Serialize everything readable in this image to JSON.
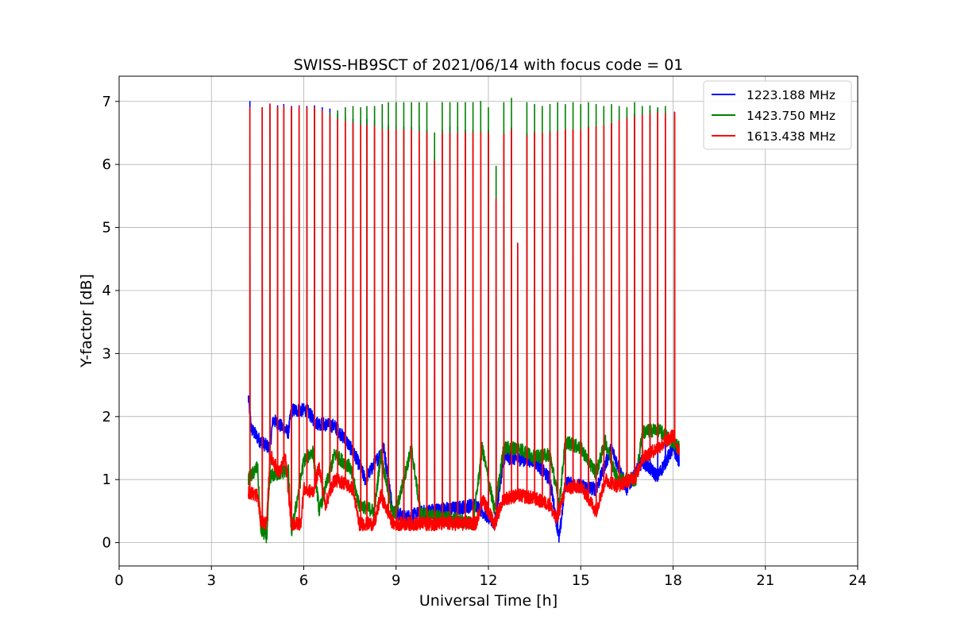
{
  "chart_data": {
    "type": "line",
    "title": "SWISS-HB9SCT of 2021/06/14 with focus code = 01",
    "xlabel": "Universal Time [h]",
    "ylabel": "Y-factor [dB]",
    "xlim": [
      0,
      24
    ],
    "ylim": [
      -0.37,
      7.4
    ],
    "xticks": [
      0,
      3,
      6,
      9,
      12,
      15,
      18,
      21,
      24
    ],
    "yticks": [
      0,
      1,
      2,
      3,
      4,
      5,
      6,
      7
    ],
    "grid": true,
    "legend_position": "top-right",
    "series": [
      {
        "name": "1223.188 MHz",
        "color": "#0000ff",
        "baseline": [
          [
            4.2,
            2.3
          ],
          [
            4.3,
            1.8
          ],
          [
            4.6,
            1.6
          ],
          [
            4.9,
            1.5
          ],
          [
            5.0,
            1.95
          ],
          [
            5.5,
            1.75
          ],
          [
            5.6,
            2.1
          ],
          [
            6.1,
            2.1
          ],
          [
            6.4,
            1.9
          ],
          [
            7.0,
            1.85
          ],
          [
            7.4,
            1.6
          ],
          [
            7.7,
            1.35
          ],
          [
            8.0,
            1.0
          ],
          [
            8.6,
            1.5
          ],
          [
            8.9,
            0.5
          ],
          [
            9.3,
            0.4
          ],
          [
            10.0,
            0.5
          ],
          [
            11.0,
            0.55
          ],
          [
            11.6,
            0.6
          ],
          [
            12.2,
            0.3
          ],
          [
            12.5,
            1.35
          ],
          [
            13.5,
            1.3
          ],
          [
            14.0,
            1.0
          ],
          [
            14.3,
            0.05
          ],
          [
            14.5,
            0.95
          ],
          [
            15.0,
            0.9
          ],
          [
            15.5,
            0.85
          ],
          [
            16.0,
            1.5
          ],
          [
            16.5,
            0.85
          ],
          [
            17.0,
            1.3
          ],
          [
            17.5,
            1.05
          ],
          [
            18.0,
            1.5
          ],
          [
            18.2,
            1.3
          ]
        ],
        "peaks": [
          [
            4.25,
            7.0
          ],
          [
            4.65,
            6.9
          ],
          [
            4.9,
            6.95
          ],
          [
            5.15,
            6.93
          ],
          [
            5.35,
            6.95
          ],
          [
            5.6,
            6.92
          ],
          [
            5.85,
            6.93
          ],
          [
            6.1,
            6.92
          ],
          [
            6.35,
            6.93
          ],
          [
            6.6,
            6.9
          ],
          [
            6.85,
            6.88
          ],
          [
            7.1,
            6.8
          ],
          [
            7.35,
            6.75
          ],
          [
            7.6,
            6.72
          ],
          [
            7.85,
            6.7
          ],
          [
            8.05,
            6.72
          ],
          [
            8.3,
            6.7
          ],
          [
            8.55,
            6.65
          ],
          [
            8.75,
            6.62
          ],
          [
            9.0,
            6.62
          ],
          [
            9.25,
            6.6
          ],
          [
            9.5,
            6.6
          ],
          [
            9.75,
            6.6
          ],
          [
            10.0,
            6.55
          ],
          [
            10.25,
            6.1
          ],
          [
            10.5,
            6.55
          ],
          [
            10.75,
            6.6
          ],
          [
            11.0,
            6.6
          ],
          [
            11.25,
            6.55
          ],
          [
            11.5,
            6.55
          ],
          [
            11.75,
            6.55
          ],
          [
            12.0,
            6.55
          ],
          [
            12.25,
            5.45
          ],
          [
            12.5,
            6.5
          ],
          [
            12.75,
            6.58
          ],
          [
            12.95,
            4.75
          ],
          [
            13.25,
            6.5
          ],
          [
            13.5,
            6.52
          ],
          [
            13.75,
            6.5
          ],
          [
            14.0,
            6.53
          ],
          [
            14.25,
            6.53
          ],
          [
            14.5,
            6.55
          ],
          [
            14.75,
            6.55
          ],
          [
            15.0,
            6.55
          ],
          [
            15.25,
            6.6
          ],
          [
            15.5,
            6.6
          ],
          [
            15.75,
            6.62
          ],
          [
            16.0,
            6.65
          ],
          [
            16.25,
            6.7
          ],
          [
            16.5,
            6.75
          ],
          [
            16.75,
            6.8
          ],
          [
            17.0,
            6.82
          ],
          [
            17.25,
            6.85
          ],
          [
            17.5,
            6.87
          ],
          [
            17.75,
            6.82
          ],
          [
            18.05,
            6.83
          ]
        ]
      },
      {
        "name": "1423.750 MHz",
        "color": "#008000",
        "baseline": [
          [
            4.2,
            1.0
          ],
          [
            4.5,
            1.2
          ],
          [
            4.6,
            0.2
          ],
          [
            4.8,
            0.1
          ],
          [
            4.9,
            1.05
          ],
          [
            5.5,
            1.15
          ],
          [
            5.6,
            0.15
          ],
          [
            6.0,
            1.3
          ],
          [
            6.3,
            1.45
          ],
          [
            6.5,
            0.5
          ],
          [
            7.0,
            1.4
          ],
          [
            7.5,
            1.2
          ],
          [
            7.8,
            0.6
          ],
          [
            8.3,
            0.5
          ],
          [
            8.5,
            1.4
          ],
          [
            8.9,
            0.45
          ],
          [
            9.0,
            0.5
          ],
          [
            9.5,
            1.5
          ],
          [
            9.8,
            0.45
          ],
          [
            10.5,
            0.4
          ],
          [
            11.5,
            0.3
          ],
          [
            11.8,
            1.5
          ],
          [
            12.2,
            0.5
          ],
          [
            12.5,
            1.5
          ],
          [
            13.0,
            1.5
          ],
          [
            13.5,
            1.35
          ],
          [
            14.0,
            1.4
          ],
          [
            14.3,
            0.6
          ],
          [
            14.5,
            1.6
          ],
          [
            15.0,
            1.5
          ],
          [
            15.5,
            1.1
          ],
          [
            15.8,
            1.6
          ],
          [
            16.2,
            1.0
          ],
          [
            16.8,
            1.0
          ],
          [
            17.0,
            1.75
          ],
          [
            17.5,
            1.8
          ],
          [
            18.0,
            1.6
          ],
          [
            18.2,
            1.5
          ]
        ],
        "peaks": [
          [
            4.25,
            6.9
          ],
          [
            4.65,
            6.9
          ],
          [
            4.9,
            6.92
          ],
          [
            5.15,
            6.9
          ],
          [
            5.35,
            6.9
          ],
          [
            5.6,
            6.9
          ],
          [
            5.85,
            6.9
          ],
          [
            6.1,
            6.9
          ],
          [
            6.35,
            6.9
          ],
          [
            6.6,
            6.85
          ],
          [
            6.85,
            6.82
          ],
          [
            7.1,
            6.85
          ],
          [
            7.35,
            6.9
          ],
          [
            7.6,
            6.92
          ],
          [
            7.85,
            6.9
          ],
          [
            8.05,
            6.92
          ],
          [
            8.3,
            6.92
          ],
          [
            8.55,
            6.95
          ],
          [
            8.75,
            6.98
          ],
          [
            9.0,
            6.98
          ],
          [
            9.25,
            6.98
          ],
          [
            9.5,
            6.98
          ],
          [
            9.75,
            6.98
          ],
          [
            10.0,
            6.98
          ],
          [
            10.25,
            6.5
          ],
          [
            10.5,
            6.98
          ],
          [
            10.75,
            6.98
          ],
          [
            11.0,
            6.98
          ],
          [
            11.25,
            6.98
          ],
          [
            11.5,
            6.98
          ],
          [
            11.75,
            7.0
          ],
          [
            12.0,
            6.9
          ],
          [
            12.25,
            5.97
          ],
          [
            12.5,
            6.98
          ],
          [
            12.75,
            7.05
          ],
          [
            12.95,
            4.7
          ],
          [
            13.25,
            6.98
          ],
          [
            13.5,
            6.95
          ],
          [
            13.75,
            6.92
          ],
          [
            14.0,
            6.95
          ],
          [
            14.25,
            6.98
          ],
          [
            14.5,
            6.95
          ],
          [
            14.75,
            6.98
          ],
          [
            15.0,
            6.95
          ],
          [
            15.25,
            6.98
          ],
          [
            15.5,
            6.95
          ],
          [
            15.75,
            6.92
          ],
          [
            16.0,
            6.95
          ],
          [
            16.25,
            6.92
          ],
          [
            16.5,
            6.9
          ],
          [
            16.75,
            6.98
          ],
          [
            17.0,
            6.92
          ],
          [
            17.25,
            6.93
          ],
          [
            17.5,
            6.9
          ],
          [
            17.75,
            6.92
          ],
          [
            18.05,
            6.8
          ]
        ]
      },
      {
        "name": "1613.438 MHz",
        "color": "#ff0000",
        "baseline": [
          [
            4.2,
            0.8
          ],
          [
            4.5,
            0.75
          ],
          [
            4.6,
            0.35
          ],
          [
            4.8,
            0.3
          ],
          [
            4.9,
            1.4
          ],
          [
            5.2,
            1.1
          ],
          [
            5.4,
            1.35
          ],
          [
            5.6,
            0.3
          ],
          [
            5.9,
            0.3
          ],
          [
            6.0,
            0.85
          ],
          [
            6.3,
            0.8
          ],
          [
            6.5,
            1.2
          ],
          [
            6.7,
            0.6
          ],
          [
            7.0,
            1.0
          ],
          [
            7.3,
            0.95
          ],
          [
            7.6,
            0.85
          ],
          [
            7.8,
            0.3
          ],
          [
            8.3,
            0.3
          ],
          [
            8.5,
            0.75
          ],
          [
            8.9,
            0.3
          ],
          [
            9.3,
            0.3
          ],
          [
            10.0,
            0.3
          ],
          [
            10.5,
            0.3
          ],
          [
            11.0,
            0.3
          ],
          [
            11.6,
            0.3
          ],
          [
            11.8,
            0.7
          ],
          [
            12.2,
            0.3
          ],
          [
            12.5,
            0.7
          ],
          [
            13.0,
            0.75
          ],
          [
            13.5,
            0.7
          ],
          [
            14.0,
            0.6
          ],
          [
            14.2,
            0.35
          ],
          [
            14.5,
            0.85
          ],
          [
            15.0,
            0.9
          ],
          [
            15.5,
            0.5
          ],
          [
            15.8,
            1.0
          ],
          [
            16.2,
            0.9
          ],
          [
            16.8,
            1.05
          ],
          [
            17.0,
            1.35
          ],
          [
            17.5,
            1.5
          ],
          [
            18.0,
            1.7
          ],
          [
            18.2,
            1.45
          ]
        ],
        "peaks": [
          [
            4.25,
            6.9
          ],
          [
            4.65,
            6.9
          ],
          [
            4.9,
            6.96
          ],
          [
            5.15,
            6.9
          ],
          [
            5.35,
            6.92
          ],
          [
            5.6,
            6.9
          ],
          [
            5.85,
            6.92
          ],
          [
            6.1,
            6.9
          ],
          [
            6.35,
            6.9
          ],
          [
            6.6,
            6.85
          ],
          [
            6.85,
            6.78
          ],
          [
            7.1,
            6.72
          ],
          [
            7.35,
            6.68
          ],
          [
            7.6,
            6.65
          ],
          [
            7.85,
            6.62
          ],
          [
            8.05,
            6.62
          ],
          [
            8.3,
            6.6
          ],
          [
            8.55,
            6.55
          ],
          [
            8.75,
            6.55
          ],
          [
            9.0,
            6.55
          ],
          [
            9.25,
            6.55
          ],
          [
            9.5,
            6.55
          ],
          [
            9.75,
            6.52
          ],
          [
            10.0,
            6.5
          ],
          [
            10.25,
            6.05
          ],
          [
            10.5,
            6.5
          ],
          [
            10.75,
            6.5
          ],
          [
            11.0,
            6.5
          ],
          [
            11.25,
            6.5
          ],
          [
            11.5,
            6.5
          ],
          [
            11.75,
            6.5
          ],
          [
            12.0,
            6.5
          ],
          [
            12.25,
            5.45
          ],
          [
            12.5,
            6.48
          ],
          [
            12.75,
            6.55
          ],
          [
            12.95,
            4.75
          ],
          [
            13.25,
            6.45
          ],
          [
            13.5,
            6.5
          ],
          [
            13.75,
            6.5
          ],
          [
            14.0,
            6.5
          ],
          [
            14.25,
            6.52
          ],
          [
            14.5,
            6.55
          ],
          [
            14.75,
            6.55
          ],
          [
            15.0,
            6.55
          ],
          [
            15.25,
            6.58
          ],
          [
            15.5,
            6.6
          ],
          [
            15.75,
            6.62
          ],
          [
            16.0,
            6.65
          ],
          [
            16.25,
            6.7
          ],
          [
            16.5,
            6.72
          ],
          [
            16.75,
            6.75
          ],
          [
            17.0,
            6.78
          ],
          [
            17.25,
            6.8
          ],
          [
            17.5,
            6.82
          ],
          [
            17.75,
            6.8
          ],
          [
            18.05,
            6.82
          ]
        ]
      }
    ]
  }
}
